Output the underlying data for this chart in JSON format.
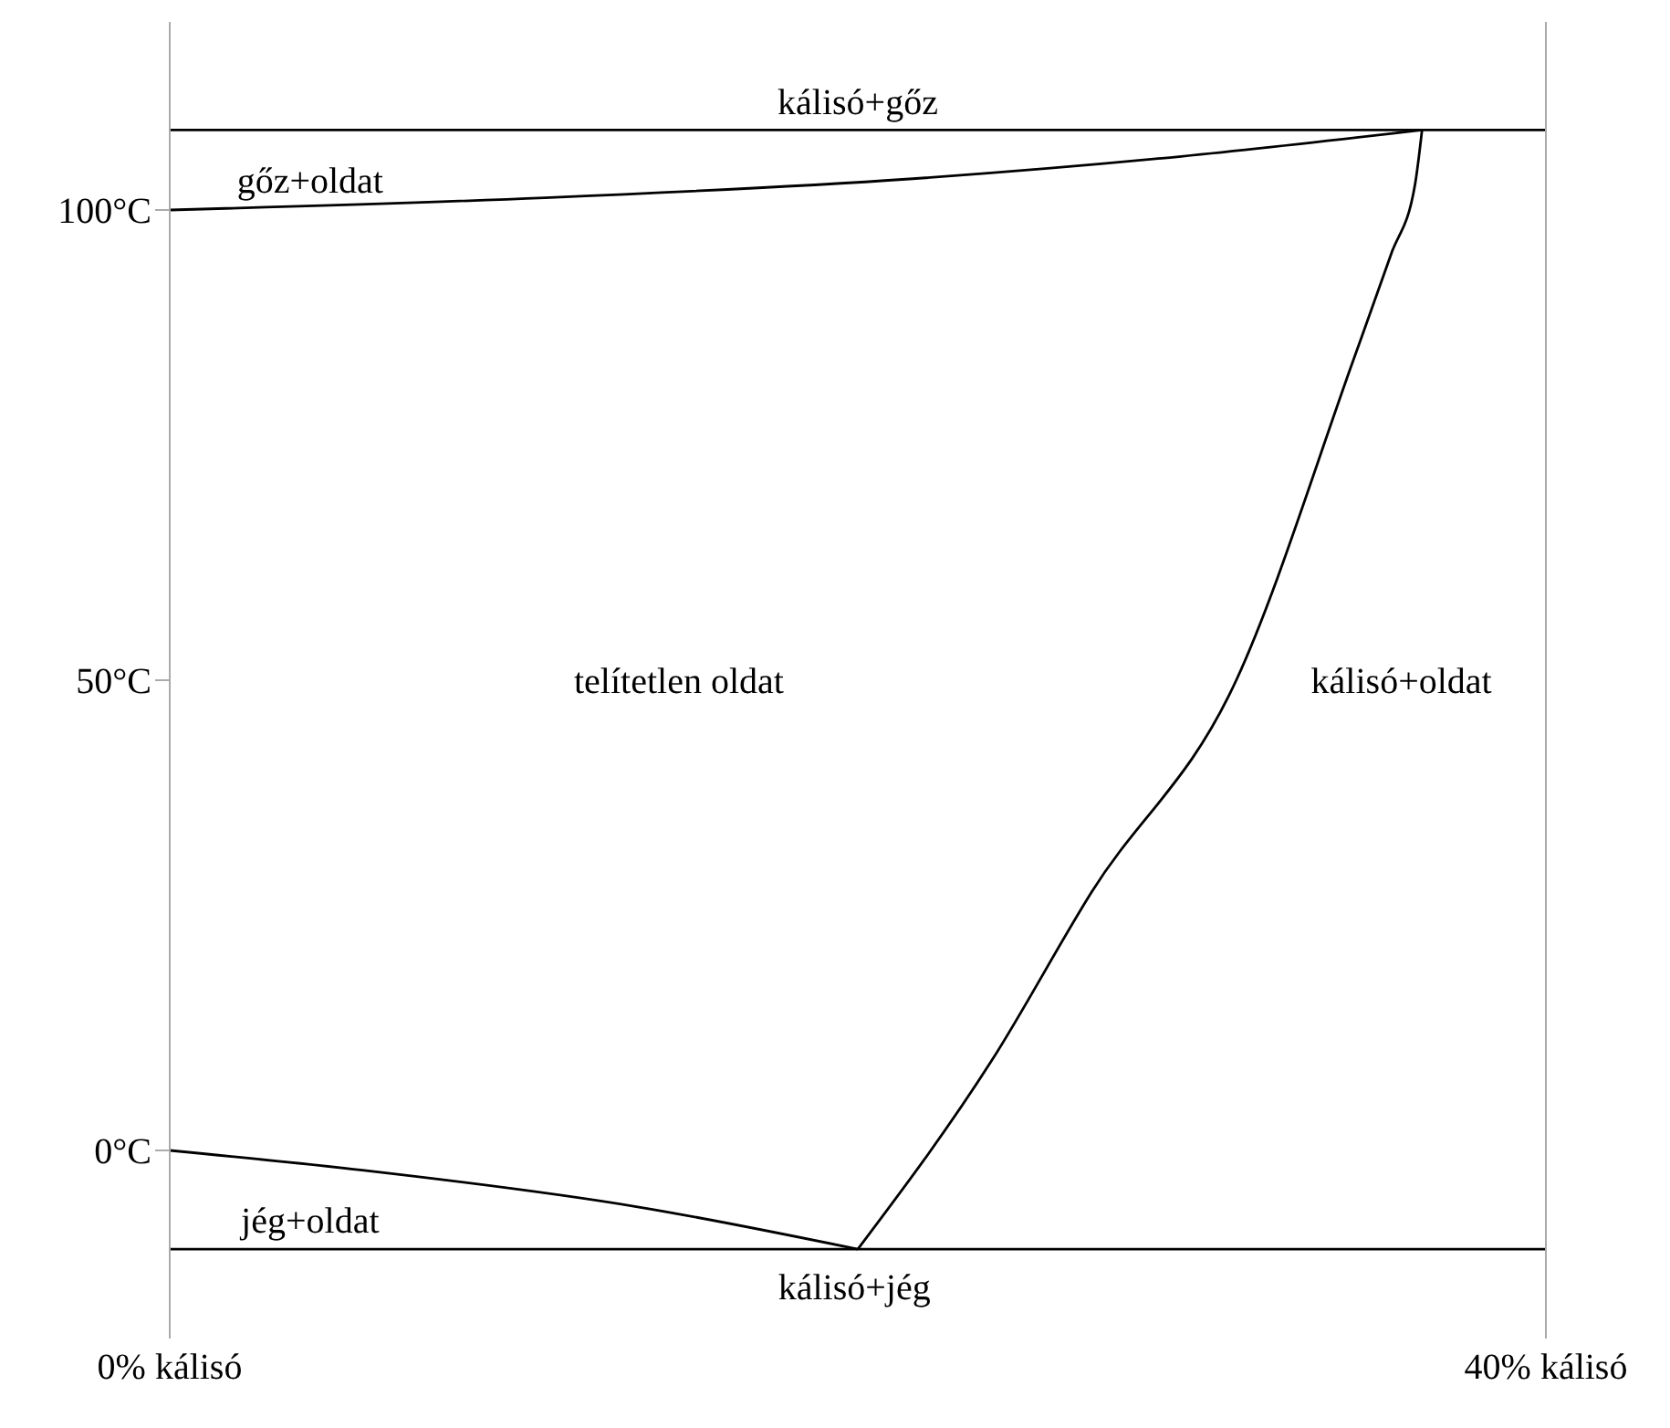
{
  "chart_data": {
    "type": "line",
    "xlim": [
      0,
      40
    ],
    "ylim": [
      -20,
      120
    ],
    "xticks": [
      {
        "value": 0,
        "label": "0% kálisó"
      },
      {
        "value": 40,
        "label": "40% kálisó"
      }
    ],
    "yticks": [
      {
        "value": 0,
        "label": "0°C"
      },
      {
        "value": 50,
        "label": "50°C"
      },
      {
        "value": 100,
        "label": "100°C"
      }
    ],
    "grid": false,
    "marker": "none",
    "line_style": "solid",
    "series": [
      {
        "color": "#000000",
        "x": [
          0,
          10.9,
          21.5,
          29.4,
          36.4
        ],
        "values": [
          100,
          101.3,
          103.3,
          105.7,
          108.5
        ]
      },
      {
        "color": "#000000",
        "x": [
          0,
          5.6,
          13.6,
          20
        ],
        "values": [
          0,
          -2.1,
          -6,
          -10.5
        ]
      },
      {
        "color": "#000000",
        "x": [
          20,
          23.9,
          26.8,
          31,
          34.4,
          35.5,
          36.2,
          36.4
        ],
        "values": [
          -10.5,
          9.6,
          27.5,
          50,
          84,
          95.3,
          102.8,
          108.5
        ]
      }
    ],
    "ref_lines": [
      {
        "axis": "y",
        "value": 108.5,
        "color": "#000000"
      },
      {
        "axis": "y",
        "value": -10.5,
        "color": "#000000"
      }
    ],
    "annotations": [
      "kálisó+gőz",
      "gőz+oldat",
      "telítetlen oldat",
      "kálisó+oldat",
      "jég+oldat",
      "kálisó+jég"
    ]
  }
}
